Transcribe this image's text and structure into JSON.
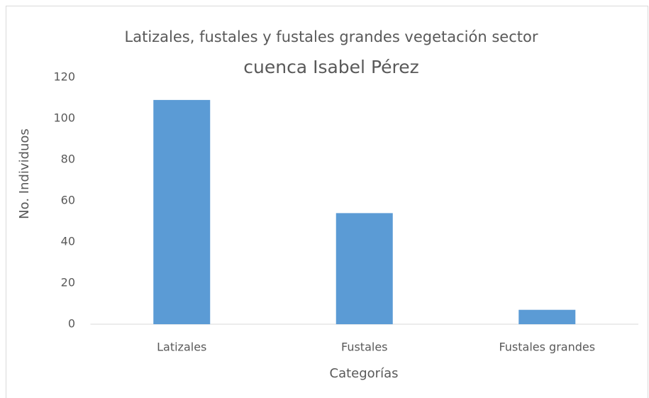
{
  "chart_data": {
    "type": "bar",
    "title": [
      "Latizales, fustales y fustales grandes vegetación sector",
      "cuenca Isabel Pérez"
    ],
    "x_label": "Categorías",
    "y_label": "No. Individuos",
    "categories": [
      "Latizales",
      "Fustales",
      "Fustales grandes"
    ],
    "values": [
      109,
      54,
      7
    ],
    "color": "#5b9bd5",
    "ylim": [
      0,
      120
    ],
    "yticks": [
      0,
      20,
      40,
      60,
      80,
      100,
      120
    ],
    "grid": false
  }
}
